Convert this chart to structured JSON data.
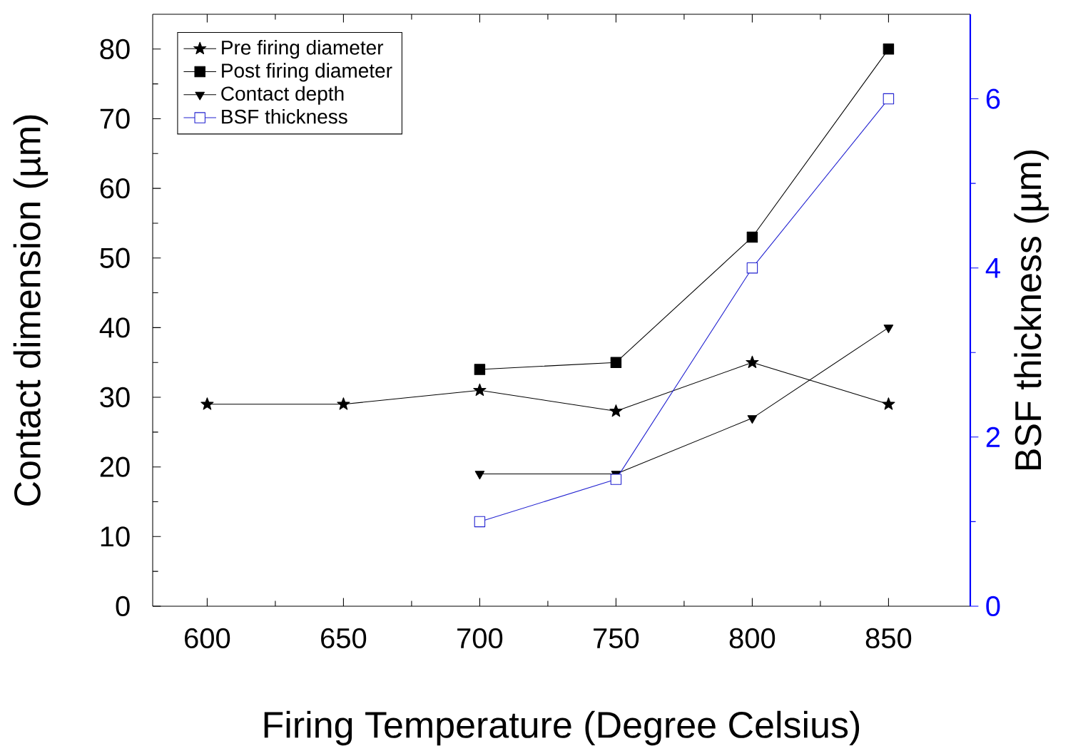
{
  "chart_data": {
    "type": "line",
    "xlabel": "Firing Temperature (Degree Celsius)",
    "ylabel": "Contact dimension (µm)",
    "y2label": "BSF thickness (µm)",
    "x": [
      600,
      650,
      700,
      750,
      800,
      850
    ],
    "series": [
      {
        "name": "Pre firing diameter",
        "color": "#000000",
        "marker": "star",
        "values": [
          29,
          29,
          31,
          28,
          35,
          29
        ]
      },
      {
        "name": "Post firing diameter",
        "color": "#000000",
        "marker": "square",
        "values": [
          null,
          null,
          34,
          35,
          53,
          80
        ]
      },
      {
        "name": "Contact depth",
        "color": "#000000",
        "marker": "triangle",
        "values": [
          null,
          null,
          19,
          19,
          27,
          40
        ]
      },
      {
        "name": "BSF thickness",
        "color": "#2020d0",
        "marker": "square",
        "axis": "y2",
        "values": [
          null,
          null,
          1,
          1.5,
          4,
          6
        ]
      }
    ],
    "xlim": [
      580,
      880
    ],
    "xticks": [
      600,
      650,
      700,
      750,
      800,
      850
    ],
    "ylim": [
      0,
      85
    ],
    "yticks": [
      0,
      10,
      20,
      30,
      40,
      50,
      60,
      70,
      80
    ],
    "y2lim": [
      0,
      7
    ],
    "y2ticks": [
      0,
      2,
      4,
      6
    ],
    "legend": "top left",
    "line_style": "solid"
  }
}
